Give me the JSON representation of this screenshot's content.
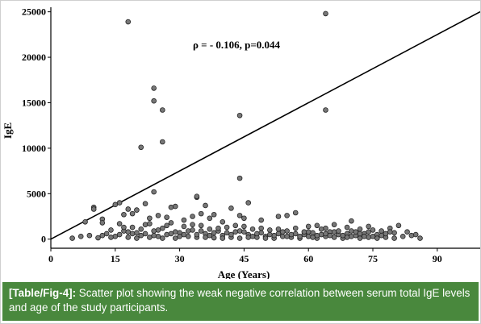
{
  "chart_data": {
    "type": "scatter",
    "title": "",
    "annotation": "ρ = - 0.106, p=0.044",
    "xlabel": "Age (Years)",
    "ylabel": "IgE",
    "xlim": [
      0,
      100
    ],
    "ylim": [
      -1000,
      25500
    ],
    "xticks": [
      0,
      15,
      30,
      45,
      60,
      75,
      90
    ],
    "yticks": [
      0,
      5000,
      10000,
      15000,
      20000,
      25000
    ],
    "grid": false,
    "fit_line": {
      "x": [
        0,
        100
      ],
      "y": [
        0,
        25000
      ]
    },
    "marker_color": "#777777",
    "marker_edge": "#222222",
    "points": [
      [
        18,
        23900
      ],
      [
        64,
        24800
      ],
      [
        64,
        14200
      ],
      [
        24,
        16600
      ],
      [
        24,
        15200
      ],
      [
        26,
        14200
      ],
      [
        44,
        13600
      ],
      [
        21,
        10100
      ],
      [
        26,
        10700
      ],
      [
        44,
        6700
      ],
      [
        24,
        5200
      ],
      [
        34,
        4600
      ],
      [
        16,
        4000
      ],
      [
        22,
        3900
      ],
      [
        10,
        3500
      ],
      [
        28,
        3500
      ],
      [
        29,
        3600
      ],
      [
        36,
        3700
      ],
      [
        34,
        4700
      ],
      [
        42,
        3400
      ],
      [
        46,
        4000
      ],
      [
        15,
        3800
      ],
      [
        18,
        3300
      ],
      [
        20,
        3200
      ],
      [
        8,
        1900
      ],
      [
        10,
        3300
      ],
      [
        12,
        2200
      ],
      [
        17,
        2700
      ],
      [
        19,
        2800
      ],
      [
        23,
        2300
      ],
      [
        25,
        2600
      ],
      [
        27,
        2400
      ],
      [
        31,
        2100
      ],
      [
        33,
        2500
      ],
      [
        35,
        2800
      ],
      [
        37,
        2300
      ],
      [
        38,
        2700
      ],
      [
        40,
        1900
      ],
      [
        44,
        2600
      ],
      [
        45,
        2300
      ],
      [
        49,
        2100
      ],
      [
        53,
        2500
      ],
      [
        55,
        2600
      ],
      [
        57,
        2900
      ],
      [
        60,
        1400
      ],
      [
        62,
        1500
      ],
      [
        64,
        1200
      ],
      [
        66,
        1600
      ],
      [
        69,
        1300
      ],
      [
        70,
        2000
      ],
      [
        72,
        1100
      ],
      [
        74,
        1400
      ],
      [
        77,
        900
      ],
      [
        79,
        1200
      ],
      [
        81,
        1500
      ],
      [
        83,
        800
      ],
      [
        85,
        500
      ],
      [
        86,
        100
      ],
      [
        5,
        100
      ],
      [
        7,
        300
      ],
      [
        9,
        400
      ],
      [
        11,
        150
      ],
      [
        12,
        1800
      ],
      [
        13,
        600
      ],
      [
        14,
        1000
      ],
      [
        15,
        300
      ],
      [
        16,
        1700
      ],
      [
        17,
        900
      ],
      [
        18,
        200
      ],
      [
        19,
        1300
      ],
      [
        20,
        700
      ],
      [
        21,
        400
      ],
      [
        22,
        1600
      ],
      [
        23,
        200
      ],
      [
        24,
        900
      ],
      [
        25,
        300
      ],
      [
        26,
        1200
      ],
      [
        27,
        500
      ],
      [
        28,
        1800
      ],
      [
        29,
        100
      ],
      [
        30,
        700
      ],
      [
        31,
        1400
      ],
      [
        32,
        300
      ],
      [
        33,
        1000
      ],
      [
        34,
        200
      ],
      [
        35,
        1500
      ],
      [
        36,
        600
      ],
      [
        37,
        1100
      ],
      [
        38,
        150
      ],
      [
        39,
        900
      ],
      [
        40,
        400
      ],
      [
        41,
        1300
      ],
      [
        42,
        200
      ],
      [
        43,
        800
      ],
      [
        44,
        100
      ],
      [
        45,
        1400
      ],
      [
        46,
        500
      ],
      [
        47,
        1100
      ],
      [
        48,
        200
      ],
      [
        49,
        700
      ],
      [
        50,
        300
      ],
      [
        51,
        1000
      ],
      [
        52,
        100
      ],
      [
        53,
        600
      ],
      [
        54,
        300
      ],
      [
        55,
        900
      ],
      [
        56,
        200
      ],
      [
        57,
        600
      ],
      [
        58,
        100
      ],
      [
        59,
        500
      ],
      [
        60,
        300
      ],
      [
        61,
        700
      ],
      [
        62,
        100
      ],
      [
        63,
        500
      ],
      [
        64,
        300
      ],
      [
        65,
        800
      ],
      [
        66,
        200
      ],
      [
        67,
        500
      ],
      [
        68,
        100
      ],
      [
        69,
        600
      ],
      [
        70,
        300
      ],
      [
        71,
        400
      ],
      [
        72,
        100
      ],
      [
        73,
        600
      ],
      [
        74,
        200
      ],
      [
        75,
        300
      ],
      [
        76,
        500
      ],
      [
        78,
        200
      ],
      [
        80,
        700
      ],
      [
        82,
        300
      ],
      [
        84,
        400
      ],
      [
        12,
        400
      ],
      [
        14,
        200
      ],
      [
        16,
        500
      ],
      [
        18,
        800
      ],
      [
        20,
        100
      ],
      [
        22,
        600
      ],
      [
        24,
        400
      ],
      [
        26,
        100
      ],
      [
        28,
        600
      ],
      [
        30,
        300
      ],
      [
        32,
        900
      ],
      [
        34,
        500
      ],
      [
        36,
        200
      ],
      [
        38,
        700
      ],
      [
        40,
        100
      ],
      [
        42,
        500
      ],
      [
        44,
        900
      ],
      [
        46,
        200
      ],
      [
        48,
        600
      ],
      [
        50,
        100
      ],
      [
        52,
        400
      ],
      [
        54,
        800
      ],
      [
        56,
        500
      ],
      [
        58,
        300
      ],
      [
        60,
        800
      ],
      [
        62,
        400
      ],
      [
        64,
        600
      ],
      [
        66,
        800
      ],
      [
        68,
        400
      ],
      [
        70,
        900
      ],
      [
        72,
        600
      ],
      [
        74,
        800
      ],
      [
        76,
        100
      ],
      [
        78,
        600
      ],
      [
        80,
        100
      ],
      [
        17,
        1300
      ],
      [
        19,
        600
      ],
      [
        21,
        1100
      ],
      [
        23,
        1700
      ],
      [
        25,
        1000
      ],
      [
        27,
        1500
      ],
      [
        29,
        800
      ],
      [
        31,
        500
      ],
      [
        33,
        1600
      ],
      [
        35,
        900
      ],
      [
        37,
        400
      ],
      [
        39,
        1200
      ],
      [
        41,
        700
      ],
      [
        43,
        1500
      ],
      [
        45,
        800
      ],
      [
        47,
        300
      ],
      [
        49,
        1200
      ],
      [
        51,
        500
      ],
      [
        53,
        1100
      ],
      [
        55,
        300
      ],
      [
        57,
        1200
      ],
      [
        59,
        800
      ],
      [
        61,
        200
      ],
      [
        63,
        1100
      ],
      [
        65,
        400
      ],
      [
        67,
        900
      ],
      [
        69,
        200
      ],
      [
        71,
        800
      ],
      [
        73,
        300
      ],
      [
        75,
        1000
      ],
      [
        77,
        400
      ],
      [
        79,
        800
      ]
    ]
  },
  "caption": {
    "tag": "[Table/Fig-4]:",
    "text": " Scatter plot showing the weak negative correlation between serum total IgE levels and age of the study participants."
  },
  "colors": {
    "caption_bg": "#49883d",
    "caption_text": "#ffffff"
  }
}
